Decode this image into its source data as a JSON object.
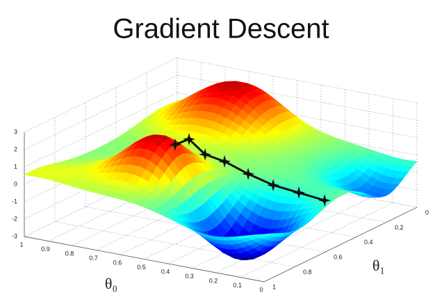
{
  "chart_data": {
    "type": "surface3d",
    "title": "Gradient Descent",
    "xlabel": "θ₀",
    "ylabel": "θ₁",
    "xlim": [
      0,
      1
    ],
    "ylim": [
      0,
      1
    ],
    "zlim": [
      -3,
      3
    ],
    "xticks": [
      0,
      0.1,
      0.2,
      0.3,
      0.4,
      0.5,
      0.6,
      0.7,
      0.8,
      0.9,
      1
    ],
    "yticks": [
      0,
      0.2,
      0.4,
      0.6,
      0.8,
      1
    ],
    "zticks": [
      -3,
      -2,
      -1,
      0,
      1,
      2,
      3
    ],
    "colormap": "jet",
    "grid": true,
    "path_color": "#111111",
    "path": {
      "x": [
        0.577,
        0.537,
        0.48,
        0.411,
        0.338,
        0.258,
        0.188,
        0.106
      ],
      "y": [
        0.677,
        0.649,
        0.633,
        0.614,
        0.574,
        0.536,
        0.478,
        0.438
      ],
      "z": [
        2.0,
        2.3,
        1.5,
        1.2,
        0.5,
        -0.1,
        -0.6,
        -1.0
      ]
    }
  }
}
